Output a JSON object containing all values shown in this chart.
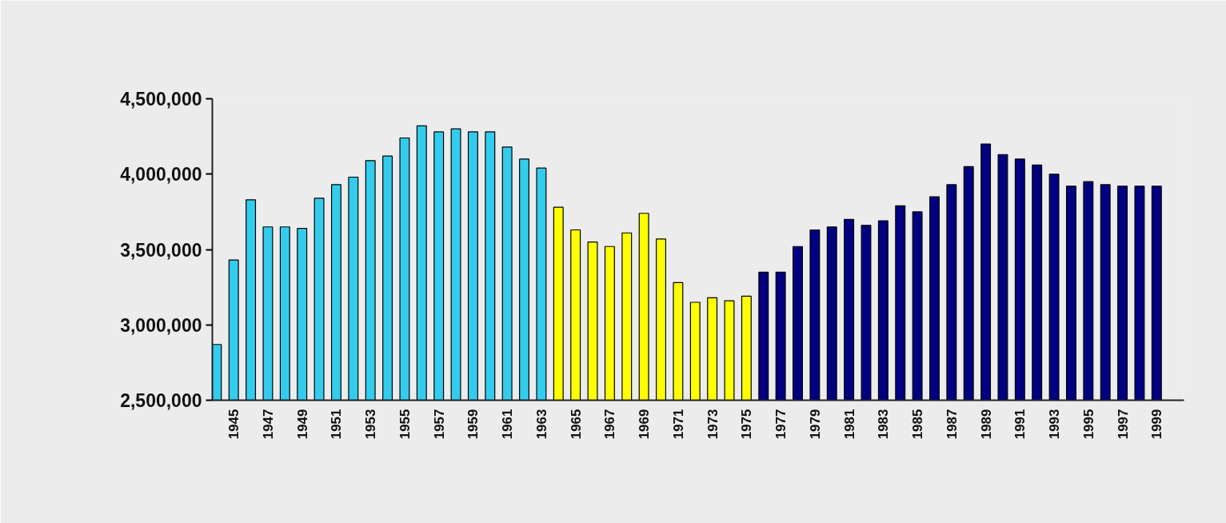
{
  "chart_data": {
    "type": "bar",
    "categories": [
      null,
      "1945",
      null,
      "1947",
      null,
      "1949",
      null,
      "1951",
      null,
      "1953",
      null,
      "1955",
      null,
      "1957",
      null,
      "1959",
      null,
      "1961",
      null,
      "1963",
      null,
      "1965",
      null,
      "1967",
      null,
      "1969",
      null,
      "1971",
      null,
      "1973",
      null,
      "1975",
      null,
      "1977",
      null,
      "1979",
      null,
      "1981",
      null,
      "1983",
      null,
      "1985",
      null,
      "1987",
      null,
      "1989",
      null,
      "1991",
      null,
      "1993",
      null,
      "1995",
      null,
      "1997",
      null,
      "1999"
    ],
    "values": [
      2870000,
      3430000,
      3830000,
      3650000,
      3650000,
      3640000,
      3840000,
      3930000,
      3980000,
      4090000,
      4120000,
      4240000,
      4320000,
      4280000,
      4300000,
      4280000,
      4280000,
      4180000,
      4100000,
      4040000,
      3780000,
      3630000,
      3550000,
      3520000,
      3610000,
      3740000,
      3570000,
      3280000,
      3150000,
      3180000,
      3160000,
      3190000,
      3350000,
      3350000,
      3520000,
      3630000,
      3650000,
      3700000,
      3660000,
      3690000,
      3790000,
      3750000,
      3850000,
      3930000,
      4050000,
      4200000,
      4130000,
      4100000,
      4060000,
      4000000,
      3920000,
      3950000,
      3930000,
      3920000,
      3920000,
      3920000
    ],
    "colors": [
      "#33ccee",
      "#33ccee",
      "#33ccee",
      "#33ccee",
      "#33ccee",
      "#33ccee",
      "#33ccee",
      "#33ccee",
      "#33ccee",
      "#33ccee",
      "#33ccee",
      "#33ccee",
      "#33ccee",
      "#33ccee",
      "#33ccee",
      "#33ccee",
      "#33ccee",
      "#33ccee",
      "#33ccee",
      "#33ccee",
      "#ffff00",
      "#ffff00",
      "#ffff00",
      "#ffff00",
      "#ffff00",
      "#ffff00",
      "#ffff00",
      "#ffff00",
      "#ffff00",
      "#ffff00",
      "#ffff00",
      "#ffff00",
      "#000080",
      "#000080",
      "#000080",
      "#000080",
      "#000080",
      "#000080",
      "#000080",
      "#000080",
      "#000080",
      "#000080",
      "#000080",
      "#000080",
      "#000080",
      "#000080",
      "#000080",
      "#000080",
      "#000080",
      "#000080",
      "#000080",
      "#000080",
      "#000080",
      "#000080",
      "#000080",
      "#000080"
    ],
    "ylim": [
      2500000,
      4500000
    ],
    "yticks": [
      {
        "value": 2500000,
        "label": "2,500,000"
      },
      {
        "value": 3000000,
        "label": "3,000,000"
      },
      {
        "value": 3500000,
        "label": "3,500,000"
      },
      {
        "value": 4000000,
        "label": "4,000,000"
      },
      {
        "value": 4500000,
        "label": "4,500,000"
      }
    ],
    "grid": false
  }
}
